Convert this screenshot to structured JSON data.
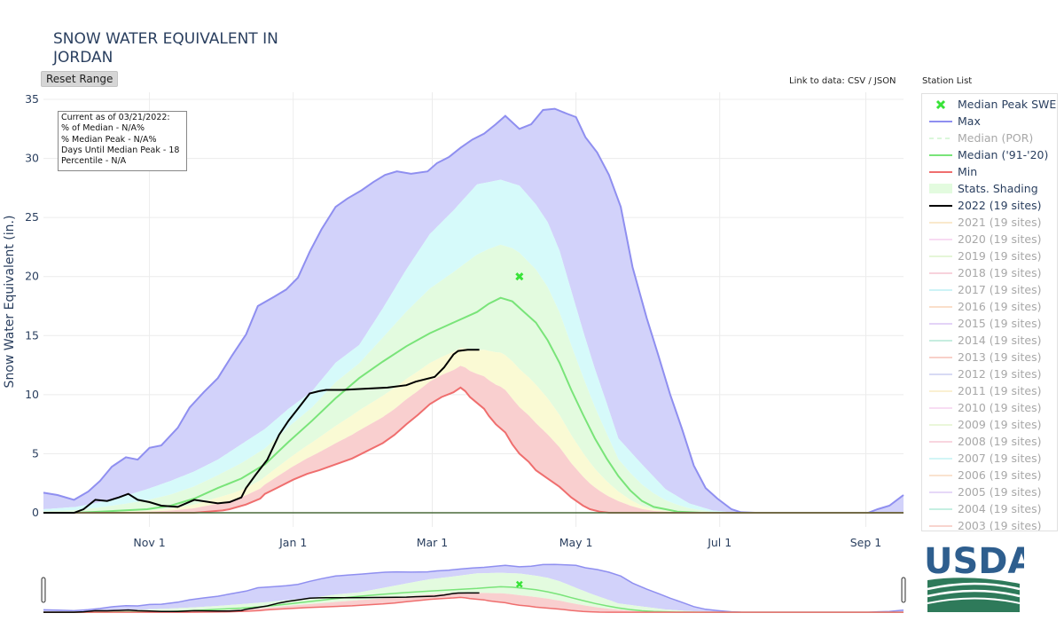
{
  "title_line1": "SNOW WATER EQUIVALENT IN",
  "title_line2": "JORDAN",
  "reset_label": "Reset Range",
  "link_prefix": "Link to data:",
  "link_csv": "CSV",
  "link_sep": "/",
  "link_json": "JSON",
  "station_list_label": "Station List",
  "info_box": {
    "line1": "Current as of 03/21/2022:",
    "line2": "% of Median - N/A%",
    "line3": "% Median Peak - N/A%",
    "line4": "Days Until Median Peak - 18",
    "line5": "Percentile - N/A"
  },
  "logo_text": "USDA",
  "colors": {
    "max": "#8f8ff0",
    "median": "#79e479",
    "min": "#ef6e6e",
    "current": "#000000",
    "peak_marker": "#38e338",
    "band_max": "#d2d2fa",
    "band_90": "#d6fafa",
    "band_70": "#e3fbdf",
    "band_30": "#fafad4",
    "band_10": "#f9cfcf",
    "logo_blue": "#2e5e8e",
    "logo_green": "#2e7a5a"
  },
  "legend": [
    {
      "label": "Median Peak SWE",
      "kind": "marker",
      "color": "#38e338",
      "hidden": false
    },
    {
      "label": "Max",
      "kind": "line",
      "color": "#8f8ff0",
      "hidden": false
    },
    {
      "label": "Median (POR)",
      "kind": "dash",
      "color": "#b6f0b6",
      "hidden": true
    },
    {
      "label": "Median ('91-'20)",
      "kind": "line",
      "color": "#79e479",
      "hidden": false
    },
    {
      "label": "Min",
      "kind": "line",
      "color": "#ef6e6e",
      "hidden": false
    },
    {
      "label": "Stats. Shading",
      "kind": "box",
      "color": "#e3fbdf",
      "hidden": false
    },
    {
      "label": "2022 (19 sites)",
      "kind": "line",
      "color": "#000000",
      "hidden": false
    },
    {
      "label": "2021 (19 sites)",
      "kind": "line",
      "color": "#f7d59a",
      "hidden": true
    },
    {
      "label": "2020 (19 sites)",
      "kind": "line",
      "color": "#f2b8e8",
      "hidden": true
    },
    {
      "label": "2019 (19 sites)",
      "kind": "line",
      "color": "#cdeeb2",
      "hidden": true
    },
    {
      "label": "2018 (19 sites)",
      "kind": "line",
      "color": "#f2a6bb",
      "hidden": true
    },
    {
      "label": "2017 (19 sites)",
      "kind": "line",
      "color": "#9de8ee",
      "hidden": true
    },
    {
      "label": "2016 (19 sites)",
      "kind": "line",
      "color": "#f6c196",
      "hidden": true
    },
    {
      "label": "2015 (19 sites)",
      "kind": "line",
      "color": "#c9a9f0",
      "hidden": true
    },
    {
      "label": "2014 (19 sites)",
      "kind": "line",
      "color": "#8fdcc0",
      "hidden": true
    },
    {
      "label": "2013 (19 sites)",
      "kind": "line",
      "color": "#f2a395",
      "hidden": true
    },
    {
      "label": "2012 (19 sites)",
      "kind": "line",
      "color": "#b2b6ea",
      "hidden": true
    },
    {
      "label": "2011 (19 sites)",
      "kind": "line",
      "color": "#f7e3a6",
      "hidden": true
    },
    {
      "label": "2010 (19 sites)",
      "kind": "line",
      "color": "#f2bde9",
      "hidden": true
    },
    {
      "label": "2009 (19 sites)",
      "kind": "line",
      "color": "#d7f0b7",
      "hidden": true
    },
    {
      "label": "2008 (19 sites)",
      "kind": "line",
      "color": "#f2adc0",
      "hidden": true
    },
    {
      "label": "2007 (19 sites)",
      "kind": "line",
      "color": "#a6ecef",
      "hidden": true
    },
    {
      "label": "2006 (19 sites)",
      "kind": "line",
      "color": "#f7c9a0",
      "hidden": true
    },
    {
      "label": "2005 (19 sites)",
      "kind": "line",
      "color": "#cfb2f2",
      "hidden": true
    },
    {
      "label": "2004 (19 sites)",
      "kind": "line",
      "color": "#8fe0c6",
      "hidden": true
    },
    {
      "label": "2003 (19 sites)",
      "kind": "line",
      "color": "#f2ab9e",
      "hidden": true
    }
  ],
  "chart_data": {
    "type": "area",
    "ylabel": "Snow Water Equivalent (in.)",
    "xlabel": "",
    "x_unit": "day of water year (Oct 1 = 0)",
    "x_range": [
      -14,
      351
    ],
    "ylim": [
      -1.2,
      35.6
    ],
    "y_ticks": [
      0,
      5,
      10,
      15,
      20,
      25,
      30,
      35
    ],
    "x_ticks": [
      {
        "label": "Nov  1",
        "x": 31
      },
      {
        "label": "Jan  1",
        "x": 92
      },
      {
        "label": "Mar  1",
        "x": 151
      },
      {
        "label": "May  1",
        "x": 212
      },
      {
        "label": "Jul  1",
        "x": 273
      },
      {
        "label": "Sep  1",
        "x": 335
      }
    ],
    "grid": true,
    "legend_position": "right",
    "median_peak_swe": {
      "x": 188,
      "y": 20.0
    },
    "series": [
      {
        "name": "Max",
        "x": [
          -14,
          -8,
          -1,
          5,
          10,
          15,
          21,
          26,
          31,
          36,
          43,
          48,
          54,
          60,
          66,
          72,
          77,
          84,
          89,
          94,
          99,
          104,
          110,
          115,
          121,
          126,
          131,
          136,
          142,
          149,
          153,
          158,
          163,
          168,
          173,
          178,
          182,
          188,
          193,
          198,
          203,
          208,
          212,
          216,
          221,
          226,
          231,
          236,
          242,
          247,
          252,
          257,
          262,
          267,
          272,
          278,
          282,
          288,
          294,
          300,
          336,
          340,
          345,
          351
        ],
        "values": [
          1.7,
          1.5,
          1.1,
          1.8,
          2.7,
          3.9,
          4.7,
          4.5,
          5.5,
          5.7,
          7.2,
          8.9,
          10.2,
          11.4,
          13.3,
          15.1,
          17.5,
          18.3,
          18.9,
          19.9,
          22.1,
          24.0,
          25.9,
          26.6,
          27.3,
          28.0,
          28.6,
          28.9,
          28.7,
          28.9,
          29.6,
          30.1,
          30.9,
          31.6,
          32.1,
          32.9,
          33.6,
          32.5,
          32.9,
          34.1,
          34.2,
          33.8,
          33.5,
          31.8,
          30.5,
          28.6,
          25.9,
          20.8,
          16.5,
          13.3,
          10.0,
          7.1,
          4.0,
          2.1,
          1.2,
          0.3,
          0.05,
          0,
          0,
          0,
          0,
          0.3,
          0.6,
          1.5
        ]
      },
      {
        "name": "Median ('91-'20)",
        "x": [
          -14,
          0,
          10,
          20,
          30,
          40,
          50,
          60,
          70,
          80,
          90,
          100,
          110,
          120,
          130,
          140,
          150,
          160,
          170,
          175,
          180,
          185,
          190,
          195,
          200,
          205,
          210,
          215,
          220,
          225,
          230,
          235,
          240,
          245,
          250,
          255,
          260,
          265,
          351
        ],
        "values": [
          0,
          0,
          0.1,
          0.2,
          0.3,
          0.6,
          1.2,
          2.1,
          2.9,
          4.1,
          6.0,
          7.8,
          9.7,
          11.4,
          12.8,
          14.1,
          15.2,
          16.1,
          17.0,
          17.7,
          18.2,
          17.9,
          17.0,
          16.1,
          14.6,
          12.7,
          10.4,
          8.3,
          6.3,
          4.6,
          3.1,
          1.9,
          1.0,
          0.5,
          0.3,
          0.1,
          0.05,
          0,
          0
        ]
      },
      {
        "name": "Min",
        "x": [
          -14,
          50,
          62,
          65,
          72,
          78,
          80,
          85,
          92,
          98,
          103,
          110,
          117,
          123,
          130,
          135,
          140,
          145,
          150,
          155,
          160,
          163,
          165,
          167,
          170,
          173,
          175,
          178,
          182,
          185,
          188,
          192,
          195,
          200,
          205,
          210,
          215,
          218,
          222,
          226,
          351
        ],
        "values": [
          0,
          0,
          0.2,
          0.3,
          0.7,
          1.2,
          1.6,
          2.1,
          2.8,
          3.3,
          3.6,
          4.1,
          4.6,
          5.2,
          5.9,
          6.6,
          7.5,
          8.3,
          9.2,
          9.8,
          10.2,
          10.6,
          10.3,
          9.8,
          9.3,
          8.8,
          8.2,
          7.5,
          6.8,
          5.8,
          5.0,
          4.3,
          3.6,
          2.9,
          2.2,
          1.3,
          0.6,
          0.3,
          0.1,
          0,
          0
        ]
      },
      {
        "name": "2022 (19 sites)",
        "x": [
          -14,
          -1,
          3,
          8,
          13,
          18,
          22,
          26,
          31,
          36,
          43,
          50,
          60,
          65,
          70,
          72,
          76,
          81,
          86,
          90,
          94,
          99,
          103,
          106,
          113,
          122,
          132,
          140,
          144,
          152,
          156,
          160,
          162,
          166,
          171
        ],
        "values": [
          0,
          0,
          0.3,
          1.1,
          1.0,
          1.3,
          1.6,
          1.1,
          0.9,
          0.6,
          0.5,
          1.1,
          0.8,
          0.9,
          1.3,
          2.1,
          3.2,
          4.5,
          6.6,
          7.8,
          8.8,
          10.1,
          10.3,
          10.4,
          10.4,
          10.5,
          10.6,
          10.8,
          11.1,
          11.5,
          12.3,
          13.4,
          13.7,
          13.8,
          13.8
        ]
      }
    ],
    "percentile_bands": [
      {
        "name": "Stats. Shading (70-90%)",
        "x": [
          -14,
          0,
          10,
          20,
          30,
          40,
          50,
          60,
          70,
          80,
          90,
          100,
          110,
          120,
          130,
          140,
          150,
          160,
          170,
          180,
          188,
          195,
          200,
          205,
          210,
          215,
          220,
          225,
          230,
          240,
          250,
          260,
          270,
          280,
          351
        ],
        "values": [
          0.3,
          0.5,
          0.9,
          1.4,
          2.0,
          2.7,
          3.5,
          4.5,
          5.8,
          7.1,
          8.8,
          10.3,
          12.7,
          14.2,
          17.3,
          20.6,
          23.6,
          25.6,
          27.8,
          28.2,
          27.7,
          26.1,
          24.6,
          22.2,
          18.8,
          15.4,
          12.2,
          9.3,
          6.3,
          4.1,
          2.0,
          0.8,
          0.2,
          0,
          0
        ]
      }
    ]
  }
}
